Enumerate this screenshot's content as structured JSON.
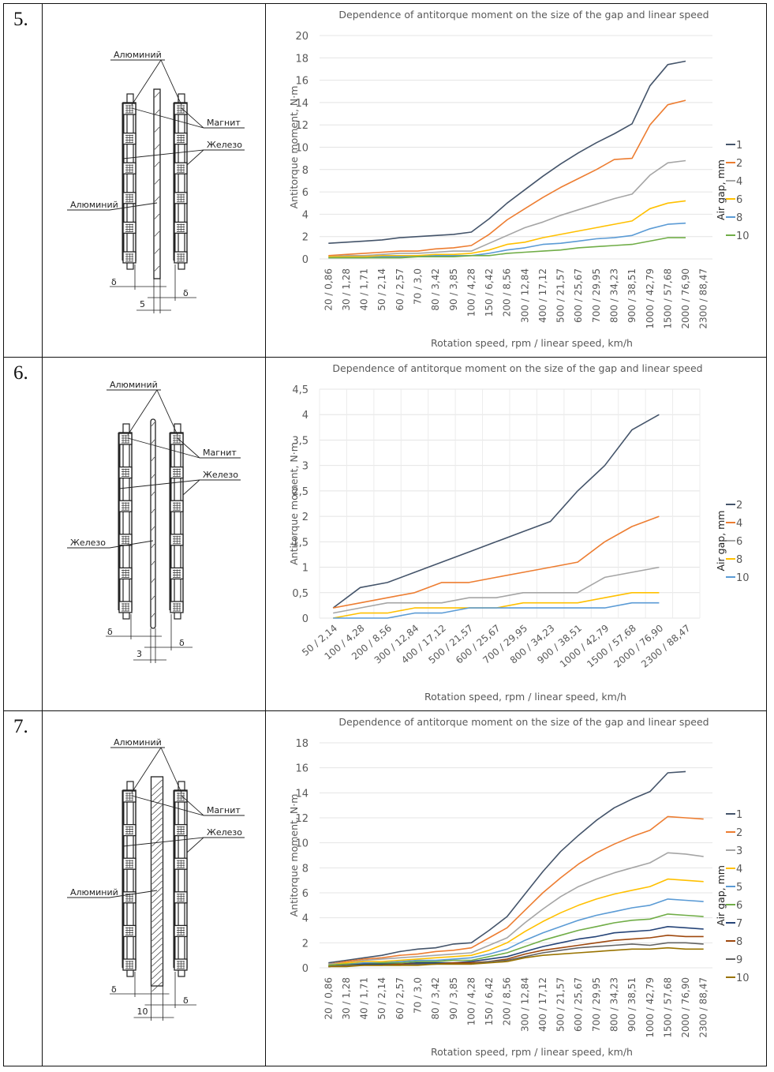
{
  "rows": [
    {
      "number": "5.",
      "diagram": {
        "labels": {
          "top": "Алюминий",
          "magnet": "Магнит",
          "iron": "Железо",
          "center": "Алюминий"
        },
        "delta": "δ",
        "thickness": "5",
        "plate": "thin-hatched"
      }
    },
    {
      "number": "6.",
      "diagram": {
        "labels": {
          "top": "Алюминий",
          "magnet": "Магнит",
          "iron": "Железо",
          "center": "Железо"
        },
        "delta": "δ",
        "thickness": "3",
        "plate": "thin-rounded"
      }
    },
    {
      "number": "7.",
      "diagram": {
        "labels": {
          "top": "Алюминий",
          "magnet": "Магнит",
          "iron": "Железо",
          "center": "Алюминий"
        },
        "delta": "δ",
        "thickness": "10",
        "plate": "thick-hatched"
      }
    }
  ],
  "chart_data": [
    {
      "type": "line",
      "title": "Dependence of antitorque moment on the size of the gap and linear speed",
      "xlabel": "Rotation speed, rpm / linear speed, km/h",
      "ylabel": "Antitorque moment, N·m",
      "legend_title": "Air gap, mm",
      "legend_position": "right",
      "ylim": [
        0,
        20
      ],
      "yticks": [
        "0",
        "2",
        "4",
        "6",
        "8",
        "10",
        "12",
        "14",
        "16",
        "18",
        "20"
      ],
      "ytick_values": [
        0,
        2,
        4,
        6,
        8,
        10,
        12,
        14,
        16,
        18,
        20
      ],
      "xtick_rotation": "vertical",
      "grid": true,
      "categories": [
        "20 / 0,86",
        "30 / 1,28",
        "40 / 1,71",
        "50 / 2,14",
        "60 / 2,57",
        "70 / 3,0",
        "80 / 3,42",
        "90 / 3,85",
        "100 / 4,28",
        "150 / 6,42",
        "200 / 8,56",
        "300 / 12,84",
        "400 / 17,12",
        "500 / 21,57",
        "600 / 25,67",
        "700 / 29,95",
        "800 / 34,23",
        "900 / 38,51",
        "1000 / 42,79",
        "1500 / 57,68",
        "2000 / 76,90",
        "2300 / 88,47"
      ],
      "series": [
        {
          "name": "1",
          "color": "#44546a",
          "values": [
            1.4,
            1.5,
            1.6,
            1.7,
            1.9,
            2.0,
            2.1,
            2.2,
            2.4,
            3.6,
            5.0,
            6.2,
            7.4,
            8.5,
            9.5,
            10.4,
            11.2,
            12.1,
            15.5,
            17.4,
            17.7,
            null
          ]
        },
        {
          "name": "2",
          "color": "#ed7d31",
          "values": [
            0.3,
            0.4,
            0.5,
            0.6,
            0.7,
            0.7,
            0.9,
            1.0,
            1.2,
            2.2,
            3.5,
            4.5,
            5.5,
            6.4,
            7.2,
            8.0,
            8.9,
            9.0,
            12.0,
            13.8,
            14.2,
            null
          ]
        },
        {
          "name": "4",
          "color": "#a5a5a5",
          "values": [
            0.2,
            0.3,
            0.3,
            0.4,
            0.5,
            0.5,
            0.6,
            0.7,
            0.7,
            1.4,
            2.1,
            2.8,
            3.3,
            3.9,
            4.4,
            4.9,
            5.4,
            5.8,
            7.5,
            8.6,
            8.8,
            null
          ]
        },
        {
          "name": "6",
          "color": "#ffc000",
          "values": [
            0.2,
            0.2,
            0.2,
            0.3,
            0.3,
            0.3,
            0.4,
            0.4,
            0.5,
            0.8,
            1.3,
            1.5,
            1.9,
            2.2,
            2.5,
            2.8,
            3.1,
            3.4,
            4.5,
            5.0,
            5.2,
            null
          ]
        },
        {
          "name": "8",
          "color": "#5b9bd5",
          "values": [
            0.1,
            0.1,
            0.1,
            0.2,
            0.2,
            0.2,
            0.3,
            0.3,
            0.3,
            0.5,
            0.8,
            1.0,
            1.3,
            1.4,
            1.6,
            1.8,
            1.9,
            2.1,
            2.7,
            3.1,
            3.2,
            null
          ]
        },
        {
          "name": "10",
          "color": "#70ad47",
          "values": [
            0.1,
            0.1,
            0.1,
            0.1,
            0.1,
            0.2,
            0.2,
            0.2,
            0.3,
            0.3,
            0.5,
            0.6,
            0.7,
            0.8,
            1.0,
            1.1,
            1.2,
            1.3,
            1.6,
            1.9,
            1.9,
            null
          ]
        }
      ]
    },
    {
      "type": "line",
      "title": "Dependence of antitorque moment on the size of the gap and linear speed",
      "xlabel": "Rotation speed, rpm / linear speed, km/h",
      "ylabel": "Antitorque moment, N·m",
      "legend_title": "Air gap, mm",
      "legend_position": "right",
      "ylim": [
        0,
        4.5
      ],
      "yticks": [
        "0",
        "0,5",
        "1",
        "1,5",
        "2",
        "2,5",
        "3",
        "3,5",
        "4",
        "4,5"
      ],
      "ytick_values": [
        0,
        0.5,
        1,
        1.5,
        2,
        2.5,
        3,
        3.5,
        4,
        4.5
      ],
      "xtick_rotation": "diagonal",
      "grid": true,
      "categories": [
        "50 / 2,14",
        "100 / 4,28",
        "200 / 8,56",
        "300 / 12,84",
        "400 / 17,12",
        "500 / 21,57",
        "600 / 25,67",
        "700 / 29,95",
        "800 / 34,23",
        "900 / 38,51",
        "1000 / 42,79",
        "1500 / 57,68",
        "2000 / 76,90",
        "2300 / 88,47"
      ],
      "series": [
        {
          "name": "2",
          "color": "#44546a",
          "values": [
            0.2,
            0.6,
            0.7,
            0.9,
            1.1,
            1.3,
            1.5,
            1.7,
            1.9,
            2.5,
            3.0,
            3.7,
            4.0
          ]
        },
        {
          "name": "4",
          "color": "#ed7d31",
          "values": [
            0.2,
            0.3,
            0.4,
            0.5,
            0.7,
            0.7,
            0.8,
            0.9,
            1.0,
            1.1,
            1.5,
            1.8,
            2.0
          ]
        },
        {
          "name": "6",
          "color": "#a5a5a5",
          "values": [
            0.1,
            0.2,
            0.3,
            0.3,
            0.3,
            0.4,
            0.4,
            0.5,
            0.5,
            0.5,
            0.8,
            0.9,
            1.0
          ]
        },
        {
          "name": "8",
          "color": "#ffc000",
          "values": [
            0.0,
            0.1,
            0.1,
            0.2,
            0.2,
            0.2,
            0.2,
            0.3,
            0.3,
            0.3,
            0.4,
            0.5,
            0.5
          ]
        },
        {
          "name": "10",
          "color": "#5b9bd5",
          "values": [
            0.0,
            0.0,
            0.0,
            0.1,
            0.1,
            0.2,
            0.2,
            0.2,
            0.2,
            0.2,
            0.2,
            0.3,
            0.3
          ]
        }
      ]
    },
    {
      "type": "line",
      "title": "Dependence of antitorque moment on the size of the gap and linear speed",
      "xlabel": "Rotation speed, rpm / linear speed, km/h",
      "ylabel": "Antitorque moment, N·m",
      "legend_title": "Air gap, mm",
      "legend_position": "right",
      "ylim": [
        0,
        18
      ],
      "yticks": [
        "0",
        "2",
        "4",
        "6",
        "8",
        "10",
        "12",
        "14",
        "16",
        "18"
      ],
      "ytick_values": [
        0,
        2,
        4,
        6,
        8,
        10,
        12,
        14,
        16,
        18
      ],
      "xtick_rotation": "vertical",
      "grid": true,
      "categories": [
        "20 / 0,86",
        "30 / 1,28",
        "40 / 1,71",
        "50 / 2,14",
        "60 / 2,57",
        "70 / 3,0",
        "80 / 3,42",
        "90 / 3,85",
        "100 / 4,28",
        "150 / 6,42",
        "200 / 8,56",
        "300 / 12,84",
        "400 / 17,12",
        "500 / 21,57",
        "600 / 25,67",
        "700 / 29,95",
        "800 / 34,23",
        "900 / 38,51",
        "1000 / 42,79",
        "1500 / 57,68",
        "2000 / 76,90",
        "2300 / 88,47"
      ],
      "series": [
        {
          "name": "1",
          "color": "#44546a",
          "values": [
            0.4,
            0.6,
            0.8,
            1.0,
            1.3,
            1.5,
            1.6,
            1.9,
            2.0,
            3.0,
            4.1,
            5.9,
            7.7,
            9.3,
            10.6,
            11.8,
            12.8,
            13.5,
            14.1,
            15.6,
            15.7,
            null
          ]
        },
        {
          "name": "2",
          "color": "#ed7d31",
          "values": [
            0.3,
            0.5,
            0.7,
            0.8,
            1.0,
            1.1,
            1.3,
            1.4,
            1.6,
            2.4,
            3.2,
            4.6,
            6.0,
            7.2,
            8.3,
            9.2,
            9.9,
            10.5,
            11.0,
            12.1,
            12.0,
            11.9
          ]
        },
        {
          "name": "3",
          "color": "#a5a5a5",
          "values": [
            0.3,
            0.4,
            0.6,
            0.7,
            0.8,
            0.9,
            1.0,
            1.1,
            1.2,
            1.8,
            2.4,
            3.6,
            4.7,
            5.7,
            6.5,
            7.1,
            7.6,
            8.0,
            8.4,
            9.2,
            9.1,
            8.9
          ]
        },
        {
          "name": "4",
          "color": "#ffc000",
          "values": [
            0.2,
            0.4,
            0.5,
            0.5,
            0.6,
            0.7,
            0.8,
            0.9,
            1.0,
            1.4,
            2.0,
            2.9,
            3.7,
            4.4,
            5.0,
            5.5,
            5.9,
            6.2,
            6.5,
            7.1,
            7.0,
            6.9
          ]
        },
        {
          "name": "5",
          "color": "#5b9bd5",
          "values": [
            0.2,
            0.3,
            0.4,
            0.4,
            0.5,
            0.6,
            0.6,
            0.7,
            0.8,
            1.1,
            1.5,
            2.2,
            2.8,
            3.3,
            3.8,
            4.2,
            4.5,
            4.8,
            5.0,
            5.5,
            5.4,
            5.3
          ]
        },
        {
          "name": "6",
          "color": "#70ad47",
          "values": [
            0.2,
            0.3,
            0.3,
            0.4,
            0.4,
            0.5,
            0.5,
            0.6,
            0.6,
            0.9,
            1.2,
            1.7,
            2.2,
            2.6,
            3.0,
            3.3,
            3.6,
            3.8,
            3.9,
            4.3,
            4.2,
            4.1
          ]
        },
        {
          "name": "7",
          "color": "#264478",
          "values": [
            0.1,
            0.2,
            0.3,
            0.3,
            0.3,
            0.4,
            0.4,
            0.4,
            0.5,
            0.7,
            0.9,
            1.3,
            1.7,
            2.0,
            2.3,
            2.5,
            2.8,
            2.9,
            3.0,
            3.3,
            3.2,
            3.1
          ]
        },
        {
          "name": "8",
          "color": "#9e480e",
          "values": [
            0.1,
            0.2,
            0.2,
            0.2,
            0.3,
            0.3,
            0.3,
            0.4,
            0.4,
            0.5,
            0.7,
            1.1,
            1.4,
            1.6,
            1.8,
            2.0,
            2.2,
            2.3,
            2.4,
            2.6,
            2.5,
            2.5
          ]
        },
        {
          "name": "9",
          "color": "#636363",
          "values": [
            0.1,
            0.2,
            0.2,
            0.2,
            0.2,
            0.3,
            0.3,
            0.3,
            0.3,
            0.5,
            0.6,
            0.9,
            1.2,
            1.4,
            1.6,
            1.7,
            1.8,
            1.9,
            1.8,
            2.0,
            2.0,
            1.9
          ]
        },
        {
          "name": "10",
          "color": "#997300",
          "values": [
            0.1,
            0.1,
            0.2,
            0.2,
            0.2,
            0.2,
            0.3,
            0.3,
            0.3,
            0.4,
            0.5,
            0.8,
            1.0,
            1.1,
            1.2,
            1.3,
            1.4,
            1.5,
            1.5,
            1.6,
            1.5,
            1.5
          ]
        }
      ]
    }
  ]
}
